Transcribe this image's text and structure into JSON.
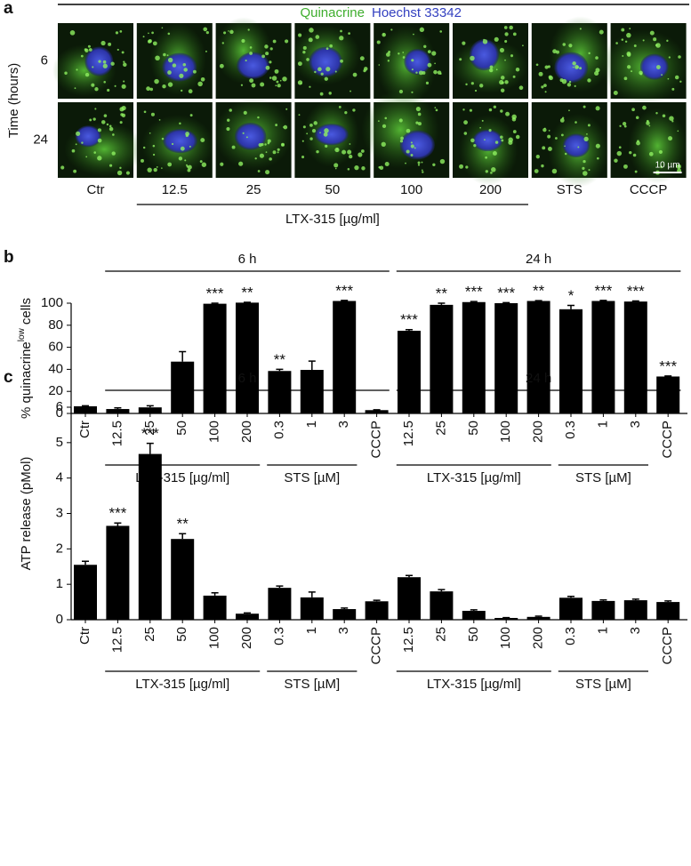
{
  "panel_a": {
    "letter": "a",
    "stain_1": "Quinacrine",
    "stain_2": "Hoechst 33342",
    "row_axis_label": "Time (hours)",
    "rows": [
      "6",
      "24"
    ],
    "columns": [
      "Ctr",
      "12.5",
      "25",
      "50",
      "100",
      "200",
      "STS",
      "CCCP"
    ],
    "group_label": "LTX-315 [µg/ml]",
    "scale_bar": "10 µm"
  },
  "chart_data": [
    {
      "type": "bar",
      "panel_label": "b",
      "ylabel": [
        "% quinacrine",
        "low",
        " cells"
      ],
      "categories": [
        "Ctr",
        "12.5",
        "25",
        "50",
        "100",
        "200",
        "0.3",
        "1",
        "3",
        "CCCP",
        "12.5",
        "25",
        "50",
        "100",
        "200",
        "0.3",
        "1",
        "3",
        "CCCP"
      ],
      "values": [
        6.5,
        4,
        5.5,
        47,
        99.5,
        100.5,
        38.5,
        39.5,
        102,
        3,
        75,
        98.5,
        101,
        100,
        102,
        94.5,
        102,
        101.5,
        33.5
      ],
      "errors": [
        0.5,
        1,
        1.5,
        9,
        0.5,
        0.3,
        1.5,
        8,
        0.5,
        0.3,
        1,
        1.5,
        0.5,
        0.5,
        0.3,
        3.5,
        0.5,
        0.5,
        0.5
      ],
      "significance": [
        null,
        null,
        null,
        null,
        "***",
        "**",
        "**",
        null,
        "***",
        null,
        "***",
        "**",
        "***",
        "***",
        "**",
        "*",
        "***",
        "***",
        "***"
      ],
      "top_groups": [
        "6 h",
        "24 h"
      ],
      "sub_groups": [
        "LTX-315 [µg/ml]",
        "STS [µM]",
        "LTX-315 [µg/ml]",
        "STS [µM]"
      ],
      "color": "#000000",
      "ylim": [
        0,
        100
      ],
      "yticks": [
        0,
        20,
        40,
        60,
        80,
        100
      ],
      "grid": false
    },
    {
      "type": "bar",
      "panel_label": "c",
      "ylabel": [
        "ATP release (pMol)"
      ],
      "categories": [
        "Ctr",
        "12.5",
        "25",
        "50",
        "100",
        "200",
        "0.3",
        "1",
        "3",
        "CCCP",
        "12.5",
        "25",
        "50",
        "100",
        "200",
        "0.3",
        "1",
        "3",
        "CCCP"
      ],
      "values": [
        1.55,
        2.65,
        4.68,
        2.28,
        0.68,
        0.17,
        0.9,
        0.63,
        0.3,
        0.52,
        1.2,
        0.8,
        0.25,
        0.05,
        0.08,
        0.62,
        0.53,
        0.55,
        0.5
      ],
      "errors": [
        0.1,
        0.08,
        0.3,
        0.15,
        0.08,
        0.02,
        0.05,
        0.15,
        0.03,
        0.03,
        0.05,
        0.05,
        0.03,
        0.01,
        0.02,
        0.04,
        0.03,
        0.03,
        0.03
      ],
      "significance": [
        null,
        "***",
        "***",
        "**",
        null,
        null,
        null,
        null,
        null,
        null,
        null,
        null,
        null,
        null,
        null,
        null,
        null,
        null,
        null
      ],
      "top_groups": [
        "6 h",
        "24 h"
      ],
      "sub_groups": [
        "LTX-315 [µg/ml]",
        "STS [µM]",
        "LTX-315 [µg/ml]",
        "STS [µM]"
      ],
      "color": "#000000",
      "ylim": [
        0,
        6
      ],
      "yticks": [
        0,
        1,
        2,
        3,
        4,
        5,
        6
      ],
      "grid": false
    }
  ]
}
